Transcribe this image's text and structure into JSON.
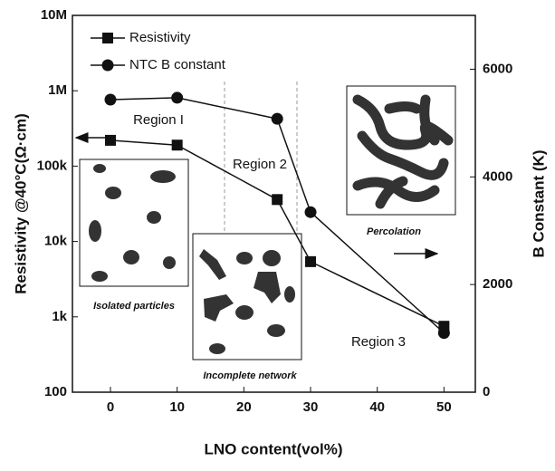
{
  "chart_data": {
    "type": "line",
    "x": [
      0,
      10,
      25,
      30,
      50
    ],
    "xlim": [
      -5.7,
      54.7
    ],
    "xticks": [
      0,
      10,
      20,
      30,
      40,
      50
    ],
    "ylim": [
      100,
      10000000
    ],
    "yscale": "log",
    "yticks": [
      100,
      {
        "value": 1000,
        "label": "1k"
      },
      {
        "value": 10000,
        "label": "10k"
      },
      {
        "value": 100000,
        "label": "100k"
      },
      {
        "value": 1000000,
        "label": "1M"
      },
      {
        "value": 10000000,
        "label": "10M"
      }
    ],
    "y2lim": [
      0,
      7000
    ],
    "y2ticks": [
      0,
      2000,
      4000,
      6000
    ],
    "xlabel": "LNO content(vol%)",
    "ylabel": "Resistivity @40°C(Ω·cm)",
    "y2label": "B Constant (K)",
    "series": [
      {
        "name": "Resistivity",
        "color": "#111111",
        "marker": "square",
        "values": [
          220000,
          190000,
          36000,
          5400,
          750
        ]
      },
      {
        "name": "NTC B constant",
        "color": "#111111",
        "marker": "circle",
        "axis": "y2",
        "values": [
          5435,
          5470,
          5080,
          3345,
          1100
        ]
      }
    ],
    "annotations": [
      "Region I",
      "Region 2",
      "Region 3",
      "Percolation",
      "Isolated particles",
      "Incomplete network"
    ]
  }
}
